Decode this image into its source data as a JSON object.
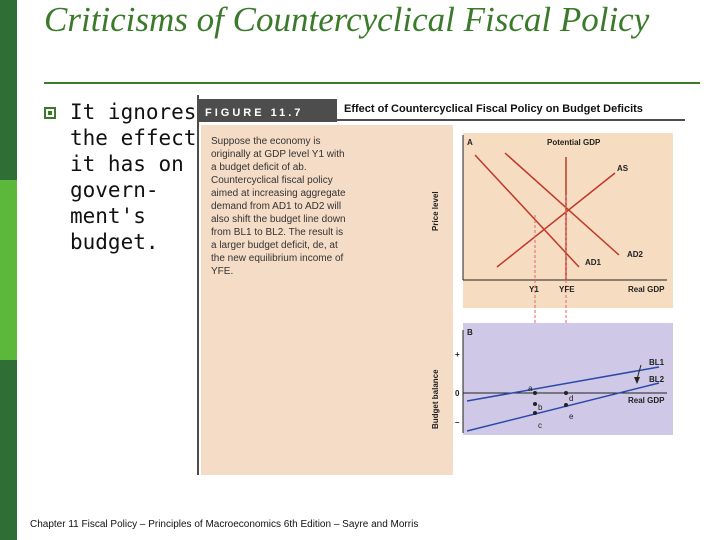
{
  "slide": {
    "title": "Criticisms of Countercyclical Fiscal Policy",
    "bullet": "It ignores\nthe effect\nit has on\ngovern-\nment's\nbudget.",
    "footer": "Chapter 11 Fiscal Policy – Principles of Macroeconomics 6th Edition – Sayre and Morris"
  },
  "figure": {
    "label": "FIGURE 11.7",
    "title": "Effect of Countercyclical Fiscal Policy on Budget Deficits",
    "caption": "Suppose the economy is originally at GDP level Y1 with a budget deficit of ab. Countercyclical fiscal policy aimed at increasing aggregate demand from AD1 to AD2 will also shift the budget line down from BL1 to BL2. The result is a larger budget deficit, de, at the new equilibrium income of YFE.",
    "panel_a": {
      "panel_letter": "A",
      "potential_gdp": "Potential GDP",
      "y_label": "Price level",
      "x_label": "Real GDP",
      "as": "AS",
      "ad1": "AD1",
      "ad2": "AD2",
      "y1": "Y1",
      "yfe": "YFE"
    },
    "panel_b": {
      "panel_letter": "B",
      "y_label": "Budget balance",
      "plus": "+",
      "zero": "0",
      "minus": "–",
      "bl1": "BL1",
      "bl2": "BL2",
      "x_label": "Real GDP",
      "points": [
        "a",
        "b",
        "c",
        "d",
        "e"
      ]
    },
    "colors": {
      "panel_a_bg": "#f6dcc0",
      "panel_b_bg": "#cfc8e6",
      "curve": "#c0392b",
      "guide": "#e06666",
      "accent": "#3b7a2a"
    }
  }
}
